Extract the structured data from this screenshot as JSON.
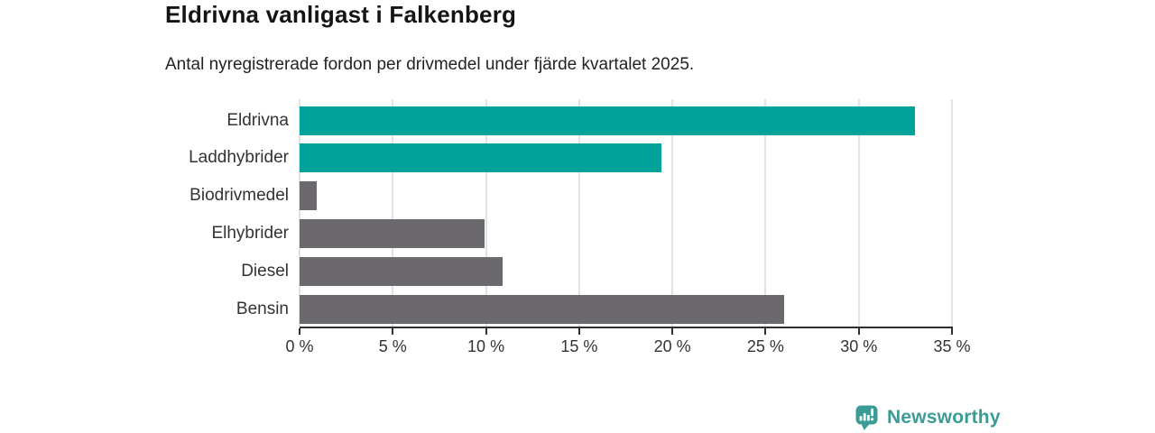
{
  "header": {
    "title": "Eldrivna vanligast i Falkenberg",
    "subtitle": "Antal nyregistrerade fordon per drivmedel under fjärde kvartalet 2025."
  },
  "chart_data": {
    "type": "bar",
    "orientation": "horizontal",
    "title": "Eldrivna vanligast i Falkenberg",
    "subtitle": "Antal nyregistrerade fordon per drivmedel under fjärde kvartalet 2025.",
    "categories": [
      "Eldrivna",
      "Laddhybrider",
      "Biodrivmedel",
      "Elhybrider",
      "Diesel",
      "Bensin"
    ],
    "values": [
      33.0,
      19.4,
      0.9,
      9.9,
      10.9,
      26.0
    ],
    "unit": "%",
    "bar_colors": [
      "#00a29a",
      "#00a29a",
      "#6b696e",
      "#6b696e",
      "#6b696e",
      "#6b696e"
    ],
    "xlim": [
      0,
      35
    ],
    "x_ticks": [
      0,
      5,
      10,
      15,
      20,
      25,
      30,
      35
    ],
    "x_tick_labels": [
      "0 %",
      "5 %",
      "10 %",
      "15 %",
      "20 %",
      "25 %",
      "30 %",
      "35 %"
    ],
    "xlabel": "",
    "ylabel": "",
    "grid": "vertical-only",
    "legend": "none"
  },
  "footer": {
    "brand": "Newsworthy"
  },
  "colors": {
    "accent_teal": "#00a29a",
    "neutral_gray": "#6b696e",
    "gridline": "#e2e2e2",
    "axis": "#2f2f2f",
    "brand_teal": "#3b9b95"
  }
}
